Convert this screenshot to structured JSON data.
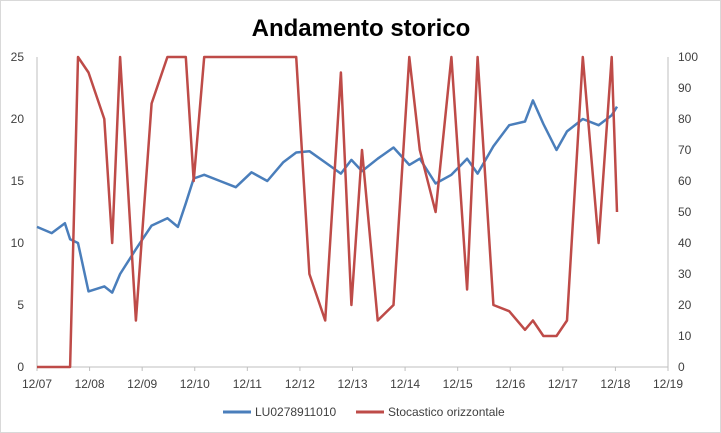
{
  "chart_data": {
    "type": "line",
    "title": "Andamento storico",
    "xlabel": "",
    "ylabel": "",
    "grid": false,
    "legend_position": "bottom",
    "x_ticks": [
      "12/07",
      "12/08",
      "12/09",
      "12/10",
      "12/11",
      "12/12",
      "12/13",
      "12/14",
      "12/15",
      "12/16",
      "12/17",
      "12/18",
      "12/19"
    ],
    "x": [
      2007.92,
      2008.2,
      2008.45,
      2008.55,
      2008.7,
      2008.9,
      2009.2,
      2009.35,
      2009.5,
      2009.8,
      2010.1,
      2010.4,
      2010.6,
      2010.75,
      2010.9,
      2011.1,
      2011.4,
      2011.7,
      2012.0,
      2012.3,
      2012.6,
      2012.85,
      2013.1,
      2013.4,
      2013.7,
      2013.9,
      2014.1,
      2014.4,
      2014.7,
      2015.0,
      2015.2,
      2015.5,
      2015.8,
      2016.1,
      2016.3,
      2016.6,
      2016.9,
      2017.2,
      2017.35,
      2017.55,
      2017.8,
      2018.0,
      2018.3,
      2018.6,
      2018.85,
      2018.95
    ],
    "ylim_left": [
      0,
      25
    ],
    "ylim_right": [
      0,
      100
    ],
    "y_ticks_left": [
      "0",
      "5",
      "10",
      "15",
      "20",
      "25"
    ],
    "y_ticks_right": [
      "0",
      "10",
      "20",
      "30",
      "40",
      "50",
      "60",
      "70",
      "80",
      "90",
      "100"
    ],
    "series": [
      {
        "name": "LU0278911010",
        "axis": "left",
        "color": "#4a7ebb",
        "values": [
          11.3,
          10.8,
          11.6,
          10.3,
          10.0,
          6.1,
          6.5,
          6.0,
          7.5,
          9.5,
          11.4,
          12.0,
          11.3,
          13.2,
          15.2,
          15.5,
          15.0,
          14.5,
          15.7,
          15.0,
          16.5,
          17.3,
          17.4,
          16.5,
          15.6,
          16.7,
          15.8,
          16.8,
          17.7,
          16.3,
          16.8,
          14.8,
          15.5,
          16.8,
          15.6,
          17.8,
          19.5,
          19.8,
          21.5,
          19.6,
          17.5,
          19.0,
          20.0,
          19.5,
          20.3,
          21.0
        ]
      },
      {
        "name": "Stocastico orizzontale",
        "axis": "right",
        "color": "#be4b48",
        "values": [
          0,
          0,
          0,
          0,
          100,
          95,
          80,
          40,
          100,
          15,
          85,
          100,
          100,
          100,
          60,
          100,
          100,
          100,
          100,
          100,
          100,
          100,
          30,
          15,
          95,
          20,
          70,
          15,
          20,
          100,
          70,
          50,
          100,
          25,
          100,
          20,
          18,
          12,
          15,
          10,
          10,
          15,
          100,
          40,
          100,
          50
        ]
      }
    ]
  }
}
